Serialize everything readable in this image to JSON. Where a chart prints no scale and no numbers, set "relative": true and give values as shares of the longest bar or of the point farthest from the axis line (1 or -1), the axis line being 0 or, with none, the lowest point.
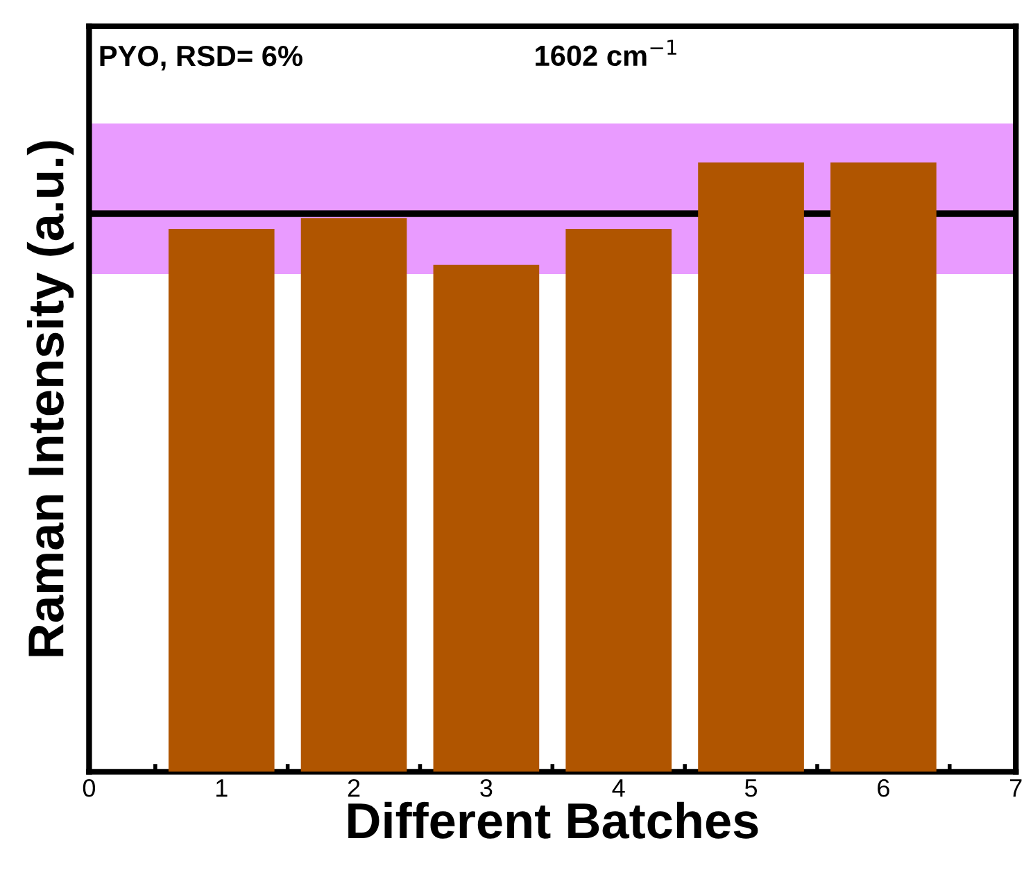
{
  "chart_data": {
    "type": "bar",
    "relative": true,
    "xlabel": "Different Batches",
    "ylabel": "Raman Intensity (a.u.)",
    "x": [
      1,
      2,
      3,
      4,
      5,
      6
    ],
    "values": [
      0.891,
      0.909,
      0.832,
      0.891,
      1,
      1
    ],
    "color": "#b05500",
    "xlim": [
      0,
      7
    ],
    "xticks": [
      0,
      1,
      2,
      3,
      4,
      5,
      6,
      7
    ],
    "ref_lines": [
      {
        "axis": "y",
        "value": 0.916,
        "color": "#000000",
        "line_style": "solid"
      }
    ],
    "bands": [
      {
        "axis": "y",
        "from": 0.817,
        "to": 1.064,
        "color": "#e070ff"
      }
    ],
    "annotations": [
      "PYO, RSD= 6%",
      "1602 cm$^{−1}$"
    ],
    "grid": false
  }
}
